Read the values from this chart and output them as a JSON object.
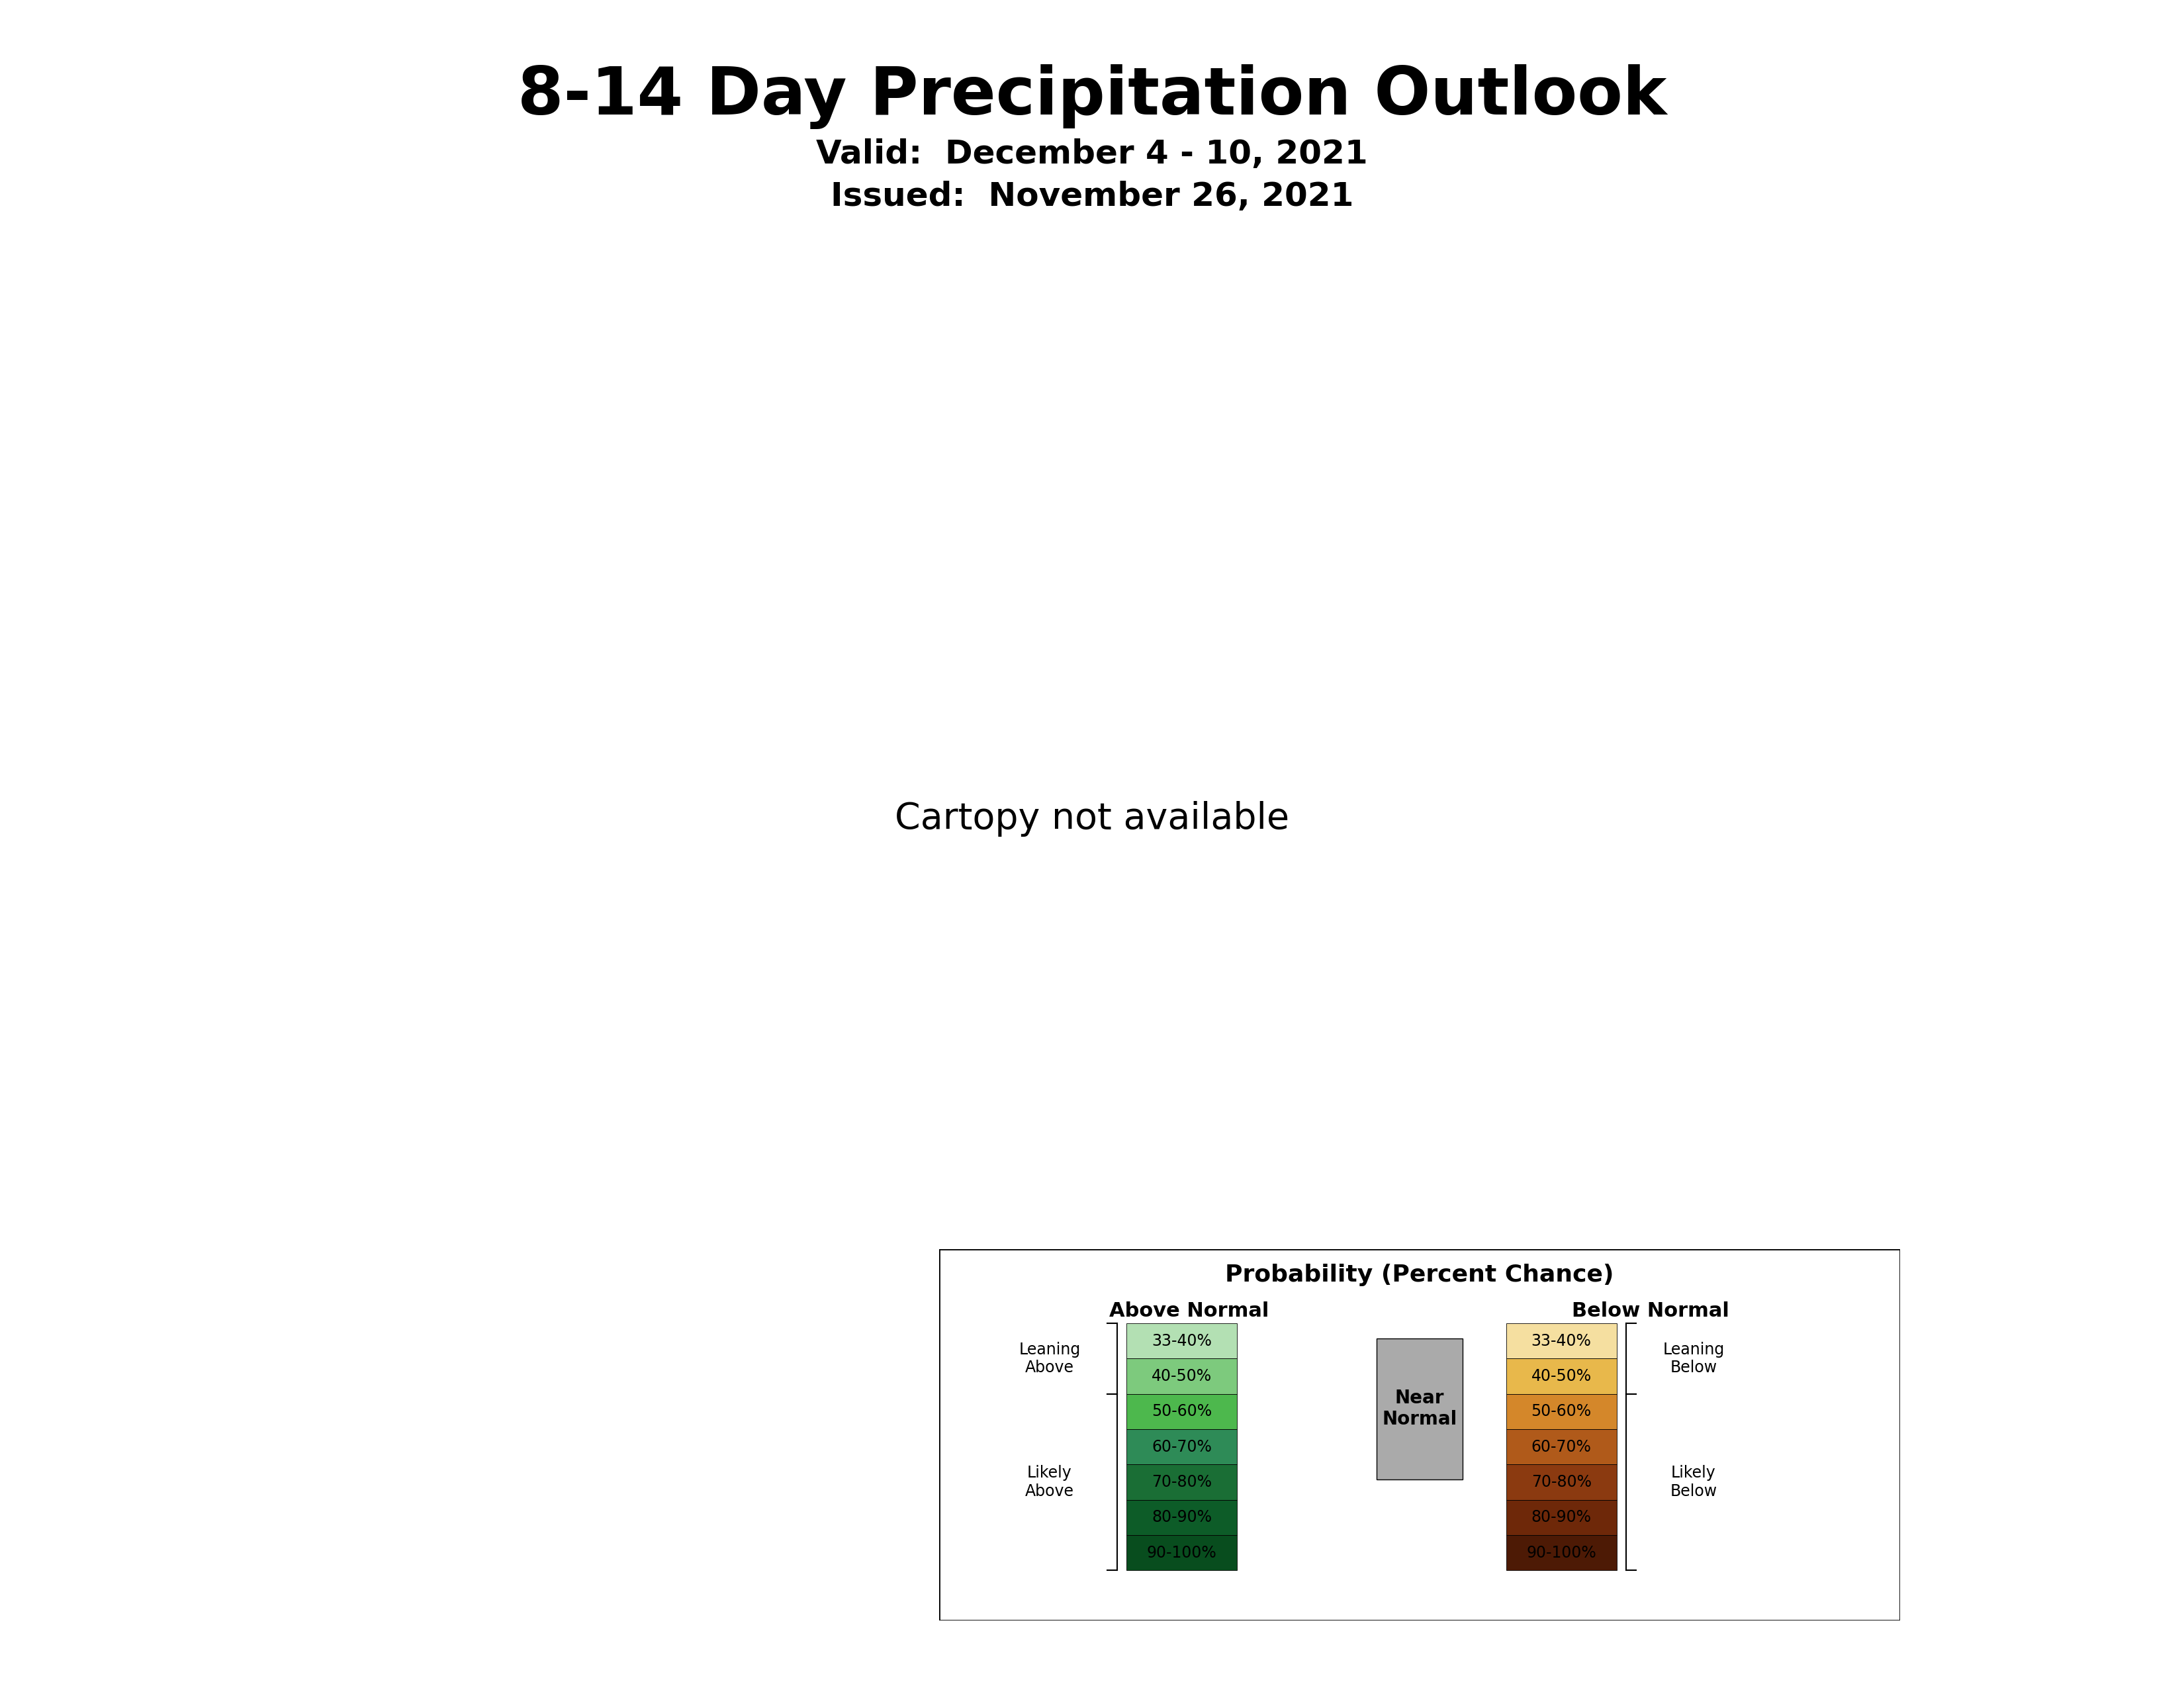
{
  "title": "8-14 Day Precipitation Outlook",
  "valid_line": "Valid:  December 4 - 10, 2021",
  "issued_line": "Issued:  November 26, 2021",
  "background_color": "#ffffff",
  "title_fontsize": 72,
  "subtitle_fontsize": 36,
  "near_normal_color": "#aaaaaa",
  "above_light_green": "#b3e0b3",
  "below_light": "#f5dfa0",
  "below_medium": "#e8b84b",
  "below_strong": "#d4872a",
  "below_vstrong": "#b05a1a",
  "legend_above_colors": [
    "#b3e0b3",
    "#7dca7d",
    "#4db84d",
    "#2e8b57",
    "#1a6e35",
    "#0d5c28",
    "#084d1e"
  ],
  "legend_below_colors": [
    "#f5dfa0",
    "#e8b84b",
    "#d4872a",
    "#b05a1a",
    "#8b3a10",
    "#6e2809",
    "#4d1a05"
  ],
  "legend_labels": [
    "33-40%",
    "40-50%",
    "50-60%",
    "60-70%",
    "70-80%",
    "80-90%",
    "90-100%"
  ],
  "legend_title": "Probability (Percent Chance)",
  "legend_above_header": "Above Normal",
  "legend_below_header": "Below Normal",
  "legend_near_normal_label": "Near\nNormal",
  "label_fontsize": 28,
  "legend_fontsize": 22
}
